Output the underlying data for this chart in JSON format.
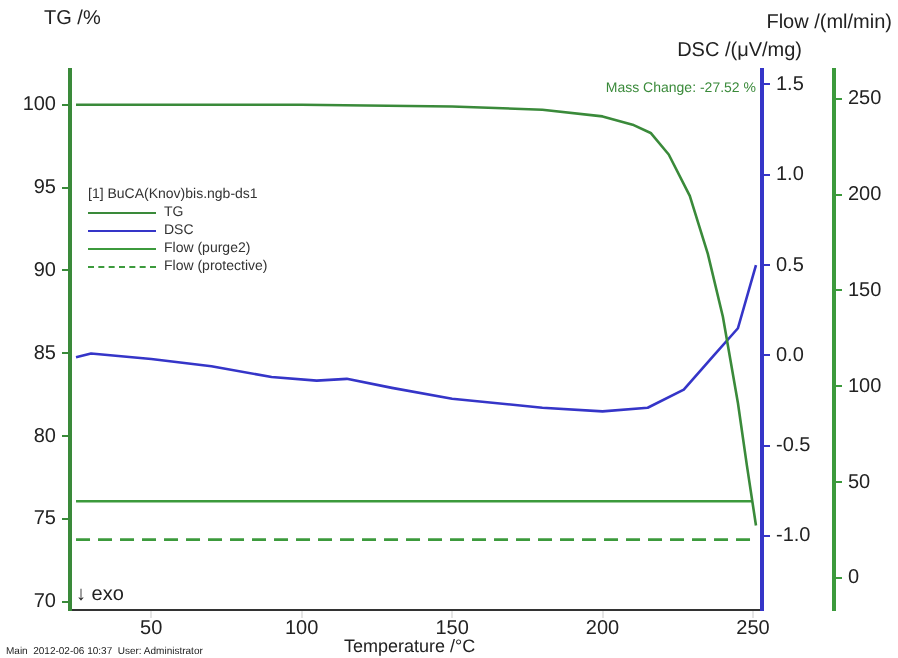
{
  "chart_data": {
    "type": "line",
    "xlabel": "Temperature /°C",
    "ylabel": "TG /%",
    "y2label": "DSC /(μV/mg)",
    "y3label": "Flow /(ml/min)",
    "legend_title": "[1] BuCA(Knov)bis.ngb-ds1",
    "legend": "top left",
    "grid": false,
    "marker": "none",
    "xlim": [
      23,
      253
    ],
    "xticks": [
      50,
      100,
      150,
      200,
      250
    ],
    "ylim": [
      69.5,
      102.1
    ],
    "yticks": [
      70,
      75,
      80,
      85,
      90,
      95,
      100
    ],
    "y2lim": [
      -1.41,
      1.58
    ],
    "y2ticks": [
      {
        "value": -1,
        "label": "-1.0"
      },
      -0.5,
      {
        "value": 0,
        "label": "0.0"
      },
      0.5,
      {
        "value": 1,
        "label": "1.0"
      },
      1.5
    ],
    "y3lim": [
      -16.7,
      265
    ],
    "y3ticks": [
      0,
      50,
      100,
      150,
      200,
      250
    ],
    "series": [
      {
        "name": "TG",
        "color": "#3a8a3a",
        "line_style": "solid",
        "x": [
          25,
          100,
          150,
          180,
          200,
          210,
          216,
          222,
          229,
          235,
          240,
          245,
          248,
          251
        ],
        "values": [
          100,
          100,
          99.9,
          99.7,
          99.3,
          98.8,
          98.3,
          97,
          94.5,
          91,
          87.2,
          82,
          78.2,
          74.6
        ]
      },
      {
        "name": "DSC",
        "color": "#3535c8",
        "axis": "y2",
        "line_style": "solid",
        "x": [
          25,
          30,
          50,
          70,
          90,
          105,
          115,
          130,
          150,
          180,
          200,
          215,
          227,
          237,
          245,
          251
        ],
        "values": [
          -0.01,
          0.01,
          -0.02,
          -0.06,
          -0.12,
          -0.14,
          -0.13,
          -0.18,
          -0.24,
          -0.29,
          -0.31,
          -0.29,
          -0.19,
          0,
          0.15,
          0.5
        ]
      },
      {
        "name": "Flow (purge2)",
        "color": "#3c9a3c",
        "axis": "y3",
        "line_style": "solid",
        "x": [
          25,
          250
        ],
        "values": [
          40,
          40
        ]
      },
      {
        "name": "Flow (protective)",
        "color": "#3c9a3c",
        "axis": "y3",
        "line_style": "dashed",
        "x": [
          25,
          250
        ],
        "values": [
          20,
          20
        ]
      }
    ],
    "annotations": [
      "Mass Change: -27.52 %",
      "↓ exo",
      "Main  2012-02-06 10:37  User: Administrator"
    ]
  }
}
